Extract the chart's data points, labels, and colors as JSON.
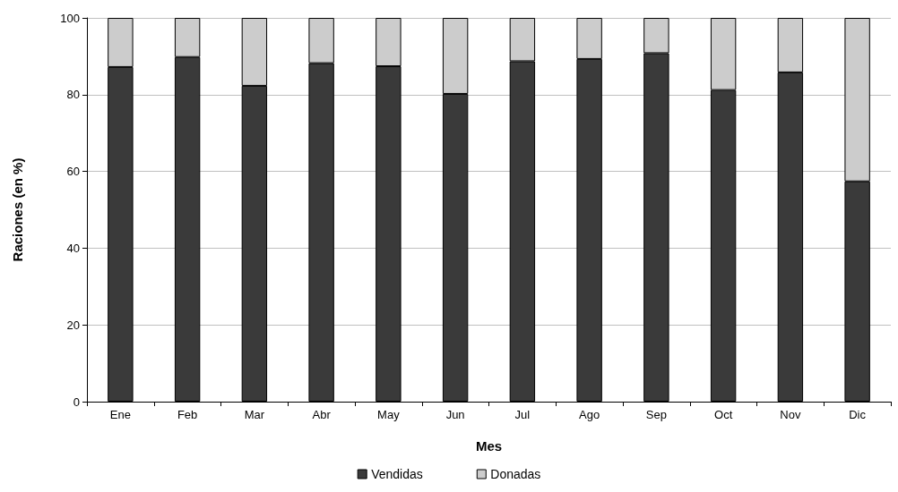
{
  "chart_data": {
    "type": "bar",
    "stacked": true,
    "xlabel": "Mes",
    "ylabel": "Raciones (en %)",
    "categories": [
      "Ene",
      "Feb",
      "Mar",
      "Abr",
      "May",
      "Jun",
      "Jul",
      "Ago",
      "Sep",
      "Oct",
      "Nov",
      "Dic"
    ],
    "series": [
      {
        "name": "Vendidas",
        "color": "#3a3a3a",
        "values": [
          87.2,
          89.8,
          82.3,
          88.2,
          87.4,
          80.2,
          88.7,
          89.3,
          90.8,
          81.2,
          85.8,
          57.4
        ]
      },
      {
        "name": "Donadas",
        "color": "#cccccc",
        "values": [
          12.8,
          10.2,
          17.7,
          11.8,
          12.6,
          19.8,
          11.3,
          10.7,
          9.2,
          18.8,
          14.2,
          42.6
        ]
      }
    ],
    "ylim": [
      0,
      100
    ],
    "yticks": [
      0,
      20,
      40,
      60,
      80,
      100
    ],
    "grid": "y",
    "legend": "bottom"
  }
}
